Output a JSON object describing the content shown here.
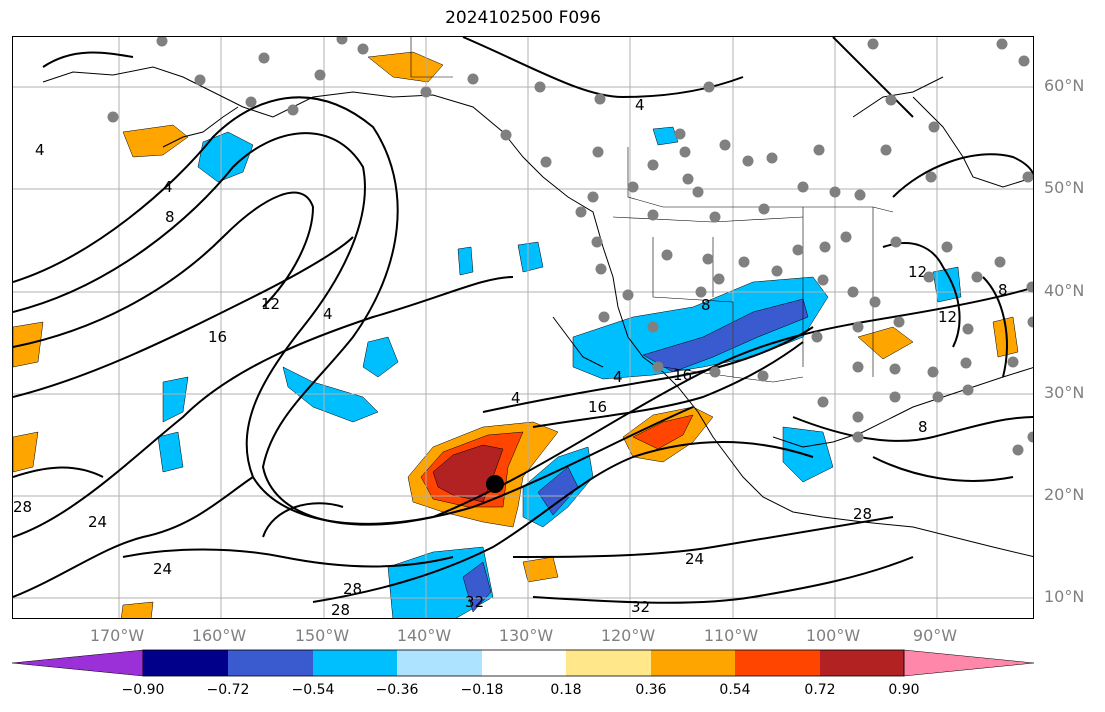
{
  "title": "2024102500 F096",
  "lat_labels": [
    "60°N",
    "50°N",
    "40°N",
    "30°N",
    "20°N",
    "10°N"
  ],
  "lon_labels": [
    "170°W",
    "160°W",
    "150°W",
    "140°W",
    "130°W",
    "120°W",
    "110°W",
    "100°W",
    "90°W"
  ],
  "colorbar": {
    "tick_labels": [
      "−0.90",
      "−0.72",
      "−0.54",
      "−0.36",
      "−0.18",
      "0.18",
      "0.36",
      "0.54",
      "0.72",
      "0.90"
    ],
    "colors": [
      "#9b30d9",
      "#00008b",
      "#3a5bd0",
      "#00bfff",
      "#aee3ff",
      "#ffffff",
      "#ffe78a",
      "#ffa500",
      "#ff4500",
      "#b22222",
      "#ff88aa"
    ]
  },
  "contour_labels": [
    "4",
    "4",
    "8",
    "12",
    "16",
    "4",
    "4",
    "4",
    "16",
    "24",
    "24",
    "28",
    "28",
    "32",
    "32",
    "24",
    "28",
    "8",
    "12",
    "8",
    "12",
    "8",
    "4",
    "16",
    "28"
  ],
  "colors": {
    "lat_lon_label": "#808080",
    "grid": "#b0b0b0",
    "station_marker": "#808080",
    "center_marker": "#000000"
  }
}
